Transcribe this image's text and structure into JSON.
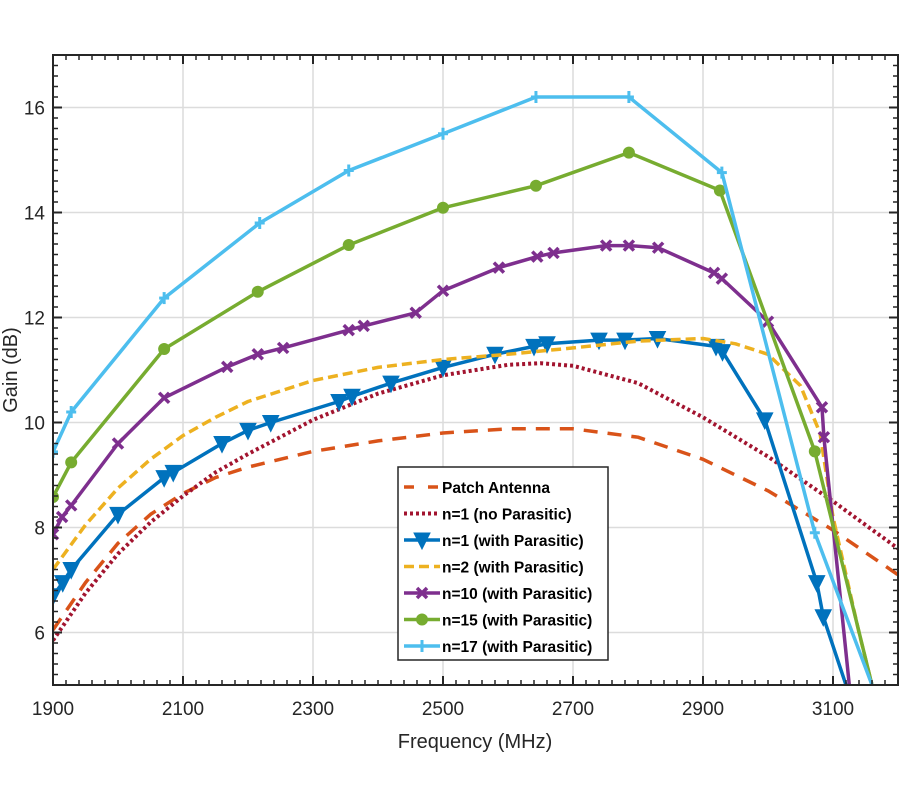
{
  "chart_data": {
    "type": "line",
    "title": "",
    "xlabel": "Frequency (MHz)",
    "ylabel": "Gain (dB)",
    "xlim": [
      1900,
      3200
    ],
    "ylim": [
      5,
      17
    ],
    "xticks": [
      1900,
      2100,
      2300,
      2500,
      2700,
      2900,
      3100
    ],
    "yticks": [
      6,
      8,
      10,
      12,
      14,
      16
    ],
    "xtick_labels": [
      "1900",
      "2100",
      "2300",
      "2500",
      "2700",
      "2900",
      "3100"
    ],
    "ytick_labels": [
      "6",
      "8",
      "10",
      "12",
      "14",
      "16"
    ],
    "grid": true,
    "legend_position": "lower-center",
    "series": [
      {
        "name": "Patch Antenna",
        "color": "#D95319",
        "style": "dashed",
        "marker": "none",
        "x": [
          1900,
          1950,
          2000,
          2050,
          2100,
          2150,
          2200,
          2300,
          2400,
          2500,
          2600,
          2700,
          2800,
          2900,
          3000,
          3100,
          3200
        ],
        "y": [
          6.05,
          6.95,
          7.7,
          8.25,
          8.65,
          8.95,
          9.15,
          9.45,
          9.65,
          9.8,
          9.88,
          9.88,
          9.72,
          9.3,
          8.7,
          7.95,
          7.1
        ]
      },
      {
        "name": "n=1 (no Parasitic)",
        "color": "#A2142F",
        "style": "dotted",
        "marker": "none",
        "x": [
          1900,
          1950,
          2000,
          2050,
          2100,
          2150,
          2200,
          2300,
          2400,
          2500,
          2600,
          2650,
          2700,
          2800,
          2900,
          3000,
          3100,
          3200
        ],
        "y": [
          5.85,
          6.75,
          7.5,
          8.1,
          8.6,
          9.05,
          9.4,
          10.05,
          10.55,
          10.9,
          11.1,
          11.13,
          11.08,
          10.75,
          10.1,
          9.35,
          8.5,
          7.6
        ]
      },
      {
        "name": "n=1 (with Parasitic)",
        "color": "#0072BD",
        "style": "solid",
        "marker": "triangle-down",
        "x": [
          1900,
          1915,
          1928,
          2000,
          2071,
          2085,
          2160,
          2200,
          2235,
          2340,
          2360,
          2420,
          2500,
          2580,
          2640,
          2660,
          2740,
          2780,
          2830,
          2920,
          2930,
          2995,
          3075,
          3085,
          3120
        ],
        "y": [
          6.7,
          6.95,
          7.2,
          8.25,
          8.95,
          9.05,
          9.6,
          9.85,
          10.0,
          10.4,
          10.5,
          10.75,
          11.05,
          11.3,
          11.45,
          11.5,
          11.57,
          11.57,
          11.6,
          11.45,
          11.35,
          10.05,
          6.95,
          6.3,
          5.0
        ]
      },
      {
        "name": "n=2 (with Parasitic)",
        "color": "#EDB120",
        "style": "dashdot",
        "marker": "none",
        "x": [
          1900,
          1950,
          2000,
          2050,
          2100,
          2150,
          2200,
          2300,
          2400,
          2500,
          2600,
          2700,
          2800,
          2900,
          2950,
          3000,
          3050,
          3080,
          3100,
          3140,
          3160
        ],
        "y": [
          7.2,
          8.05,
          8.75,
          9.3,
          9.75,
          10.1,
          10.4,
          10.8,
          11.05,
          11.2,
          11.3,
          11.42,
          11.55,
          11.6,
          11.5,
          11.3,
          10.7,
          9.8,
          8.2,
          6.0,
          5.0
        ]
      },
      {
        "name": "n=10 (with Parasitic)",
        "color": "#7E2F8E",
        "style": "solid",
        "marker": "x",
        "x": [
          1900,
          1914,
          1928,
          2000,
          2071,
          2168,
          2215,
          2254,
          2355,
          2378,
          2458,
          2500,
          2586,
          2645,
          2670,
          2751,
          2786,
          2831,
          2917,
          2929,
          3000,
          3083,
          3086,
          3125
        ],
        "y": [
          7.87,
          8.2,
          8.42,
          9.6,
          10.47,
          11.06,
          11.3,
          11.42,
          11.76,
          11.84,
          12.09,
          12.51,
          12.95,
          13.16,
          13.23,
          13.37,
          13.37,
          13.33,
          12.85,
          12.74,
          11.92,
          10.29,
          9.72,
          5.0
        ]
      },
      {
        "name": "n=15 (with Parasitic)",
        "color": "#77AC30",
        "style": "solid",
        "marker": "circle",
        "x": [
          1900,
          1928,
          2071,
          2215,
          2355,
          2500,
          2643,
          2786,
          2926,
          3072,
          3160
        ],
        "y": [
          8.58,
          9.24,
          11.4,
          12.49,
          13.38,
          14.09,
          14.51,
          15.14,
          14.42,
          9.45,
          5.0
        ]
      },
      {
        "name": "n=17 (with Parasitic)",
        "color": "#4DBEEE",
        "style": "solid",
        "marker": "plus",
        "x": [
          1900,
          1928,
          2071,
          2218,
          2355,
          2500,
          2643,
          2786,
          2929,
          3072,
          3160
        ],
        "y": [
          9.44,
          10.2,
          12.37,
          13.8,
          14.8,
          15.5,
          16.2,
          16.2,
          14.76,
          7.9,
          5.0
        ]
      }
    ]
  }
}
